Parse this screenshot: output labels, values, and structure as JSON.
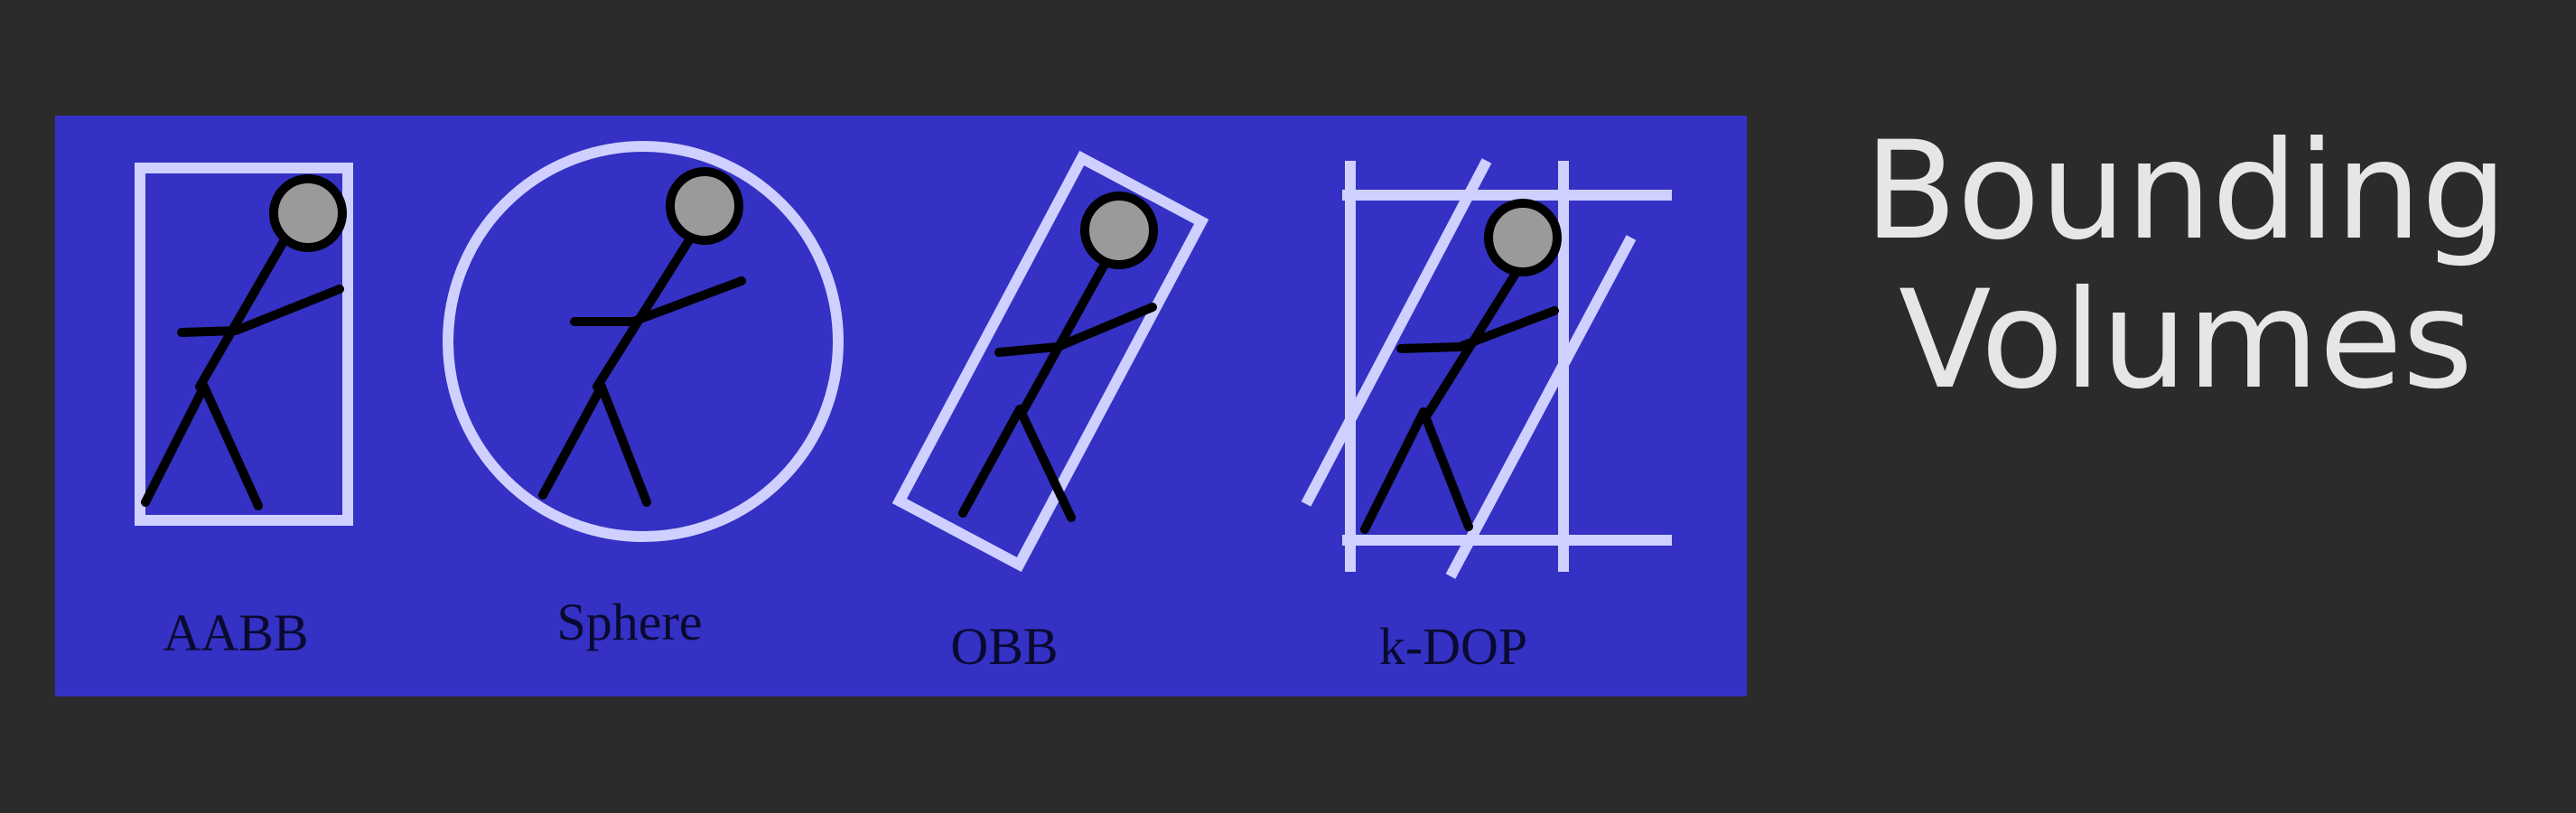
{
  "title": {
    "line1": "Bounding",
    "line2": "Volumes"
  },
  "figure": {
    "panels": [
      {
        "label": "AABB"
      },
      {
        "label": "Sphere"
      },
      {
        "label": "OBB"
      },
      {
        "label": "k-DOP"
      }
    ]
  },
  "colors": {
    "background": "#2b2b2b",
    "panel": "#3431c4",
    "volume_outline": "#cfd0ff",
    "figure_stroke": "#000000",
    "head_fill": "#9a9a9a",
    "title_text": "#e6e6e6"
  }
}
